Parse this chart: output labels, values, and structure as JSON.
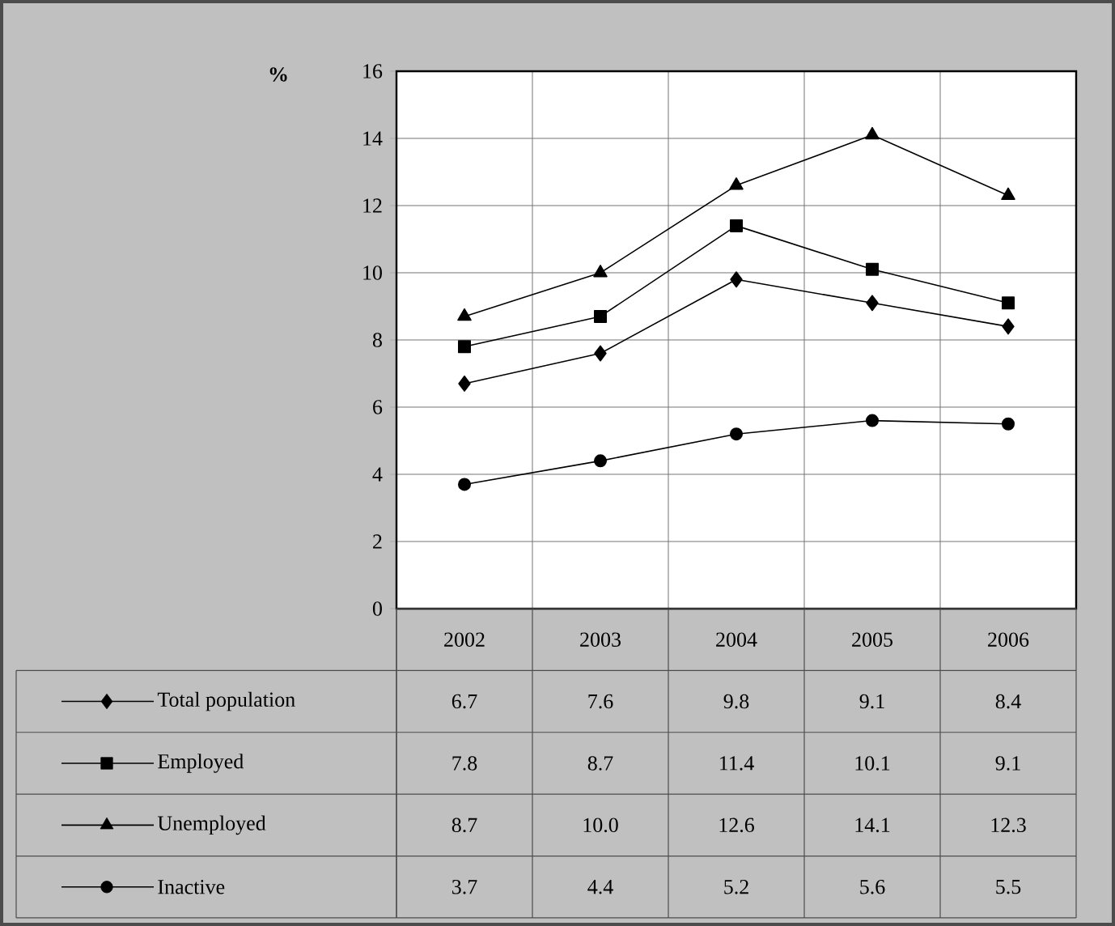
{
  "chart_data": {
    "type": "line",
    "ylabel": "%",
    "categories": [
      "2002",
      "2003",
      "2004",
      "2005",
      "2006"
    ],
    "series": [
      {
        "name": "Total population",
        "color": "#000000",
        "marker": "diamond",
        "values": [
          6.7,
          7.6,
          9.8,
          9.1,
          8.4
        ],
        "value_labels": [
          "6.7",
          "7.6",
          "9.8",
          "9.1",
          "8.4"
        ]
      },
      {
        "name": "Employed",
        "color": "#000000",
        "marker": "square",
        "values": [
          7.8,
          8.7,
          11.4,
          10.1,
          9.1
        ],
        "value_labels": [
          "7.8",
          "8.7",
          "11.4",
          "10.1",
          "9.1"
        ]
      },
      {
        "name": "Unemployed",
        "color": "#000000",
        "marker": "triangle",
        "values": [
          8.7,
          10.0,
          12.6,
          14.1,
          12.3
        ],
        "value_labels": [
          "8.7",
          "10.0",
          "12.6",
          "14.1",
          "12.3"
        ]
      },
      {
        "name": "Inactive",
        "color": "#000000",
        "marker": "circle",
        "values": [
          3.7,
          4.4,
          5.2,
          5.6,
          5.5
        ],
        "value_labels": [
          "3.7",
          "4.4",
          "5.2",
          "5.6",
          "5.5"
        ]
      }
    ],
    "ylim": [
      0,
      16
    ],
    "yticks": [
      0,
      2,
      4,
      6,
      8,
      10,
      12,
      14,
      16
    ],
    "grid": true,
    "legend": "bottom",
    "line_style": "solid"
  }
}
